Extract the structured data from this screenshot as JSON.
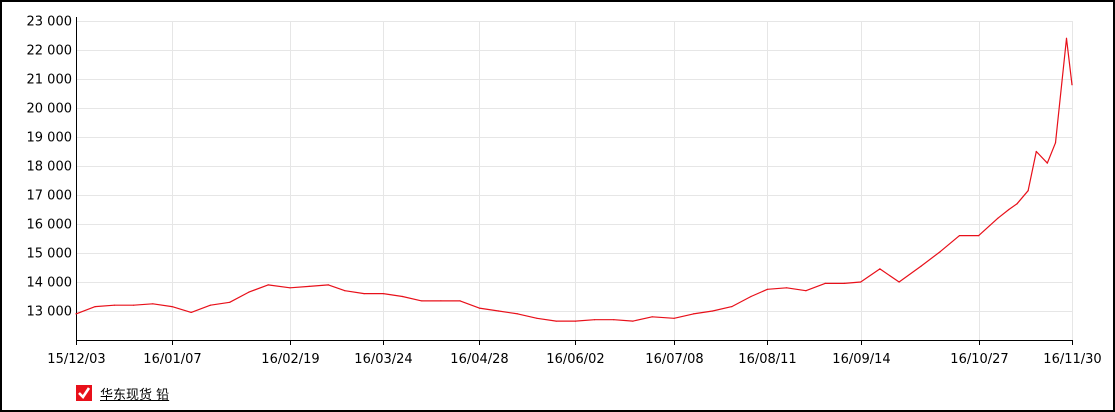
{
  "chart_data": {
    "type": "line",
    "title": "",
    "xlabel": "",
    "ylabel": "",
    "ylim": [
      12000,
      23000
    ],
    "y_ticks": [
      13000,
      14000,
      15000,
      16000,
      17000,
      18000,
      19000,
      20000,
      21000,
      22000,
      23000
    ],
    "y_tick_labels": [
      "13 000",
      "14 000",
      "15 000",
      "16 000",
      "17 000",
      "18 000",
      "19 000",
      "20 000",
      "21 000",
      "22 000",
      "23 000"
    ],
    "x_tick_labels": [
      "15/12/03",
      "16/01/07",
      "16/02/19",
      "16/03/24",
      "16/04/28",
      "16/06/02",
      "16/07/08",
      "16/08/11",
      "16/09/14",
      "16/10/27",
      "16/11/30"
    ],
    "grid": true,
    "legend_position": "bottom-left",
    "series": [
      {
        "name": "华东现货 铅",
        "color": "#e8101a",
        "x": [
          "15/12/03",
          "15/12/10",
          "15/12/17",
          "15/12/24",
          "15/12/31",
          "16/01/07",
          "16/01/14",
          "16/01/21",
          "16/01/28",
          "16/02/04",
          "16/02/11",
          "16/02/19",
          "16/02/26",
          "16/03/04",
          "16/03/10",
          "16/03/17",
          "16/03/24",
          "16/03/31",
          "16/04/07",
          "16/04/14",
          "16/04/21",
          "16/04/28",
          "16/05/05",
          "16/05/12",
          "16/05/19",
          "16/05/26",
          "16/06/02",
          "16/06/09",
          "16/06/16",
          "16/06/23",
          "16/06/30",
          "16/07/08",
          "16/07/15",
          "16/07/22",
          "16/07/29",
          "16/08/05",
          "16/08/11",
          "16/08/18",
          "16/08/25",
          "16/09/01",
          "16/09/08",
          "16/09/14",
          "16/09/21",
          "16/09/28",
          "16/10/06",
          "16/10/13",
          "16/10/20",
          "16/10/27",
          "16/11/03",
          "16/11/07",
          "16/11/10",
          "16/11/14",
          "16/11/17",
          "16/11/21",
          "16/11/24",
          "16/11/28",
          "16/11/30"
        ],
        "values": [
          12900,
          13150,
          13200,
          13200,
          13250,
          13150,
          12950,
          13200,
          13300,
          13650,
          13900,
          13800,
          13850,
          13900,
          13700,
          13600,
          13600,
          13500,
          13350,
          13350,
          13350,
          13100,
          13000,
          12900,
          12750,
          12650,
          12650,
          12700,
          12700,
          12650,
          12800,
          12750,
          12900,
          13000,
          13150,
          13500,
          13750,
          13800,
          13700,
          13950,
          13950,
          14000,
          14450,
          14000,
          14550,
          15050,
          15600,
          15600,
          16200,
          16500,
          16700,
          17150,
          18500,
          18100,
          18800,
          22400,
          20800
        ]
      }
    ]
  },
  "legend": {
    "checked": true,
    "label": "华东现货 铅"
  }
}
